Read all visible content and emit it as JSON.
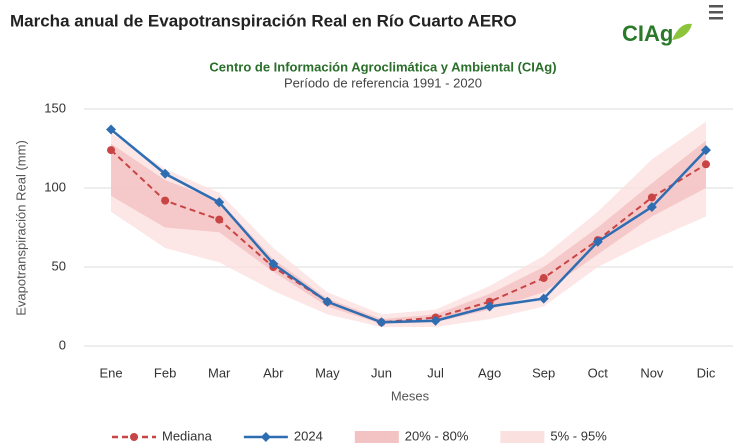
{
  "chart_data": {
    "type": "line",
    "title": "Marcha anual de Evapotranspiración Real en Río Cuarto AERO",
    "logo": "CIAg",
    "subtitle": "Centro de Información Agroclimática y Ambiental (CIAg)",
    "subtitle2": "Período de referencia 1991 - 2020",
    "y_label": "Evapotranspiración Real (mm)",
    "x_label": "Meses",
    "categories": [
      "Ene",
      "Feb",
      "Mar",
      "Abr",
      "May",
      "Jun",
      "Jul",
      "Ago",
      "Sep",
      "Oct",
      "Nov",
      "Dic"
    ],
    "ylim": [
      0,
      150
    ],
    "yticks": [
      0,
      50,
      100,
      150
    ],
    "grid": true,
    "series": [
      {
        "name": "5% - 95%",
        "kind": "band",
        "color": "#fbe0e0",
        "upper": [
          135,
          112,
          97,
          62,
          34,
          20,
          23,
          38,
          57,
          85,
          118,
          142
        ],
        "lower": [
          85,
          62,
          53,
          35,
          20,
          12,
          12,
          17,
          25,
          50,
          67,
          82
        ]
      },
      {
        "name": "20% - 80%",
        "kind": "band",
        "color": "#f3c2c2",
        "upper": [
          128,
          105,
          92,
          55,
          30,
          17,
          20,
          33,
          50,
          75,
          103,
          130
        ],
        "lower": [
          95,
          75,
          72,
          47,
          25,
          14,
          15,
          23,
          34,
          58,
          82,
          100
        ]
      },
      {
        "name": "Mediana",
        "kind": "line",
        "dash": true,
        "color": "#c94444",
        "values": [
          124,
          92,
          80,
          50,
          28,
          15,
          18,
          28,
          43,
          67,
          94,
          115
        ]
      },
      {
        "name": "2024",
        "kind": "line",
        "dash": false,
        "color": "#2f6db3",
        "values": [
          137,
          109,
          91,
          52,
          28,
          15,
          16,
          25,
          30,
          66,
          88,
          124
        ]
      }
    ],
    "legend_order": [
      2,
      3,
      1,
      0
    ]
  }
}
